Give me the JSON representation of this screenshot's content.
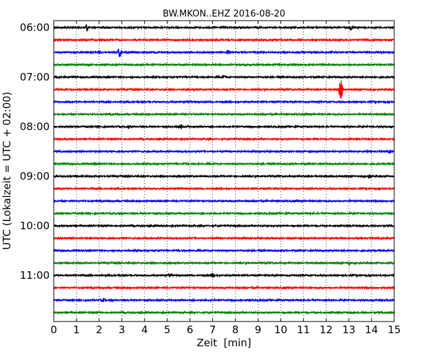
{
  "chart_data": {
    "type": "line",
    "title": "BW.MKON..EHZ 2016-08-20",
    "xlabel": "Zeit  [min]",
    "ylabel": "UTC (Lokalzeit = UTC + 02:00)",
    "xlim": [
      0,
      15
    ],
    "x_ticks": [
      "0",
      "1",
      "2",
      "3",
      "4",
      "5",
      "6",
      "7",
      "8",
      "9",
      "10",
      "11",
      "12",
      "13",
      "14",
      "15"
    ],
    "y_tick_labels": [
      "06:00",
      "07:00",
      "08:00",
      "09:00",
      "10:00",
      "11:00"
    ],
    "grid": "vertical dotted at each minute",
    "trace_colors": [
      "#000000",
      "#ff0000",
      "#0000ff",
      "#008000"
    ],
    "traces": [
      {
        "start": "06:00",
        "color": "#000000",
        "events": [
          {
            "x": 1.45,
            "amp": 6
          },
          {
            "x": 13.1,
            "amp": 4
          }
        ]
      },
      {
        "start": "06:15",
        "color": "#ff0000",
        "events": []
      },
      {
        "start": "06:30",
        "color": "#0000ff",
        "events": [
          {
            "x": 2.0,
            "amp": 3
          },
          {
            "x": 2.9,
            "amp": 7
          },
          {
            "x": 7.7,
            "amp": 4
          }
        ]
      },
      {
        "start": "06:45",
        "color": "#008000",
        "events": []
      },
      {
        "start": "07:00",
        "color": "#000000",
        "events": [
          {
            "x": 7.5,
            "amp": 3
          }
        ]
      },
      {
        "start": "07:15",
        "color": "#ff0000",
        "events": [
          {
            "x": 12.65,
            "amp": 14
          }
        ]
      },
      {
        "start": "07:30",
        "color": "#0000ff",
        "events": []
      },
      {
        "start": "07:45",
        "color": "#008000",
        "events": []
      },
      {
        "start": "08:00",
        "color": "#000000",
        "events": [
          {
            "x": 3.3,
            "amp": 3
          },
          {
            "x": 5.6,
            "amp": 4
          }
        ]
      },
      {
        "start": "08:15",
        "color": "#ff0000",
        "events": []
      },
      {
        "start": "08:30",
        "color": "#0000ff",
        "events": [
          {
            "x": 14.8,
            "amp": 3
          }
        ]
      },
      {
        "start": "08:45",
        "color": "#008000",
        "events": [
          {
            "x": 1.8,
            "amp": 3
          }
        ]
      },
      {
        "start": "09:00",
        "color": "#000000",
        "events": [
          {
            "x": 13.9,
            "amp": 4
          }
        ]
      },
      {
        "start": "09:15",
        "color": "#ff0000",
        "events": []
      },
      {
        "start": "09:30",
        "color": "#0000ff",
        "events": []
      },
      {
        "start": "09:45",
        "color": "#008000",
        "events": []
      },
      {
        "start": "10:00",
        "color": "#000000",
        "events": []
      },
      {
        "start": "10:15",
        "color": "#ff0000",
        "events": []
      },
      {
        "start": "10:30",
        "color": "#0000ff",
        "events": []
      },
      {
        "start": "10:45",
        "color": "#008000",
        "events": [
          {
            "x": 13.0,
            "amp": 3
          }
        ]
      },
      {
        "start": "11:00",
        "color": "#000000",
        "events": [
          {
            "x": 7.0,
            "amp": 4
          },
          {
            "x": 5.1,
            "amp": 3
          }
        ]
      },
      {
        "start": "11:15",
        "color": "#ff0000",
        "events": []
      },
      {
        "start": "11:30",
        "color": "#0000ff",
        "events": [
          {
            "x": 2.2,
            "amp": 3
          }
        ]
      },
      {
        "start": "11:45",
        "color": "#008000",
        "events": []
      }
    ]
  }
}
